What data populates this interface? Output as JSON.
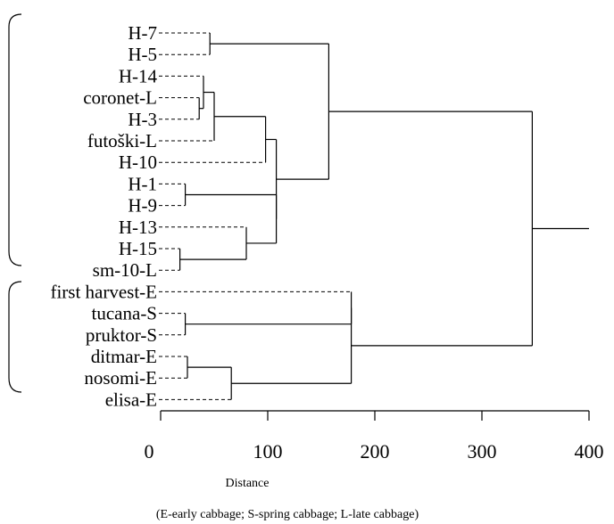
{
  "chart_data": {
    "type": "dendrogram",
    "xlabel": "Distance",
    "note": "(E-early cabbage; S-spring cabbage; L-late cabbage)",
    "xlim": [
      0,
      400
    ],
    "xticks": [
      0,
      100,
      200,
      300,
      400
    ],
    "leaves": [
      "H-7",
      "H-5",
      "H-14",
      "coronet-L",
      "H-3",
      "futoški-L",
      "H-10",
      "H-1",
      "H-9",
      "H-13",
      "H-15",
      "sm-10-L",
      "first harvest-E",
      "tucana-S",
      "pruktor-S",
      "ditmar-E",
      "nosomi-E",
      "elisa-E"
    ],
    "merges": [
      {
        "id": "n1",
        "children": [
          "H-7",
          "H-5"
        ],
        "height": 46
      },
      {
        "id": "n2",
        "children": [
          "coronet-L",
          "H-3"
        ],
        "height": 36
      },
      {
        "id": "n3",
        "children": [
          "H-14",
          "n2"
        ],
        "height": 40
      },
      {
        "id": "n4",
        "children": [
          "n3",
          "futoški-L"
        ],
        "height": 50
      },
      {
        "id": "n5",
        "children": [
          "n4",
          "H-10"
        ],
        "height": 98
      },
      {
        "id": "n6",
        "children": [
          "H-1",
          "H-9"
        ],
        "height": 23
      },
      {
        "id": "n7",
        "children": [
          "H-15",
          "sm-10-L"
        ],
        "height": 18
      },
      {
        "id": "n8",
        "children": [
          "H-13",
          "n7"
        ],
        "height": 80
      },
      {
        "id": "n9",
        "children": [
          "n6",
          "n8"
        ],
        "height": 108
      },
      {
        "id": "n10",
        "children": [
          "n5",
          "n9"
        ],
        "height": 108
      },
      {
        "id": "n11",
        "children": [
          "n1",
          "n10"
        ],
        "height": 157
      },
      {
        "id": "n12",
        "children": [
          "tucana-S",
          "pruktor-S"
        ],
        "height": 23
      },
      {
        "id": "n13",
        "children": [
          "first harvest-E",
          "n12"
        ],
        "height": 178
      },
      {
        "id": "n14",
        "children": [
          "ditmar-E",
          "nosomi-E"
        ],
        "height": 25
      },
      {
        "id": "n15",
        "children": [
          "n14",
          "elisa-E"
        ],
        "height": 66
      },
      {
        "id": "n16",
        "children": [
          "n13",
          "n15"
        ],
        "height": 178
      },
      {
        "id": "n17",
        "children": [
          "n11",
          "n16"
        ],
        "height": 347
      }
    ],
    "root_stub_to": 400
  }
}
